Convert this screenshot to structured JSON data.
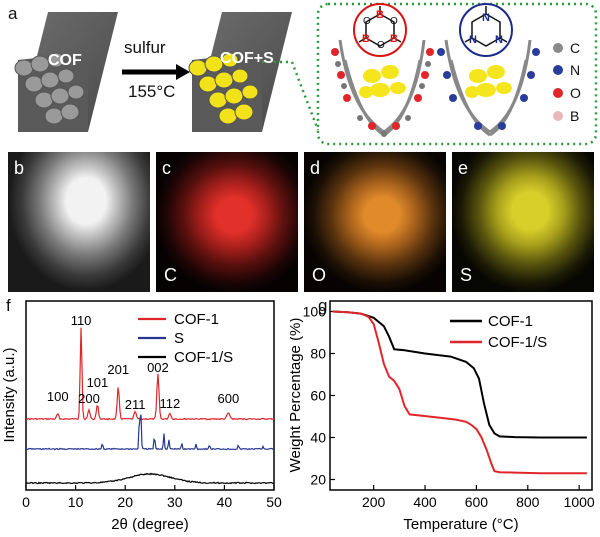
{
  "panel_a": {
    "letter": "a",
    "cof_label": "COF",
    "arrow_top": "sulfur",
    "arrow_bottom": "155°C",
    "cofs_label": "COF+S",
    "legend": [
      {
        "name": "C",
        "color": "#8a8a8a"
      },
      {
        "name": "N",
        "color": "#2b3d9a"
      },
      {
        "name": "O",
        "color": "#e0262b"
      },
      {
        "name": "B",
        "color": "#e8b8b8"
      }
    ],
    "ring_left_atoms": [
      "B",
      "O",
      "B",
      "O",
      "B",
      "O"
    ],
    "ring_right_atoms": [
      "N",
      "N",
      "N"
    ]
  },
  "maps": [
    {
      "letter": "b",
      "element": ""
    },
    {
      "letter": "c",
      "element": "C"
    },
    {
      "letter": "d",
      "element": "O"
    },
    {
      "letter": "e",
      "element": "S"
    }
  ],
  "chart_data": [
    {
      "panel": "f",
      "type": "line",
      "xlabel": "2θ (degree)",
      "ylabel": "Intensity (a.u.)",
      "xlim": [
        0,
        50
      ],
      "x_ticks": [
        "0",
        "10",
        "20",
        "30",
        "40",
        "50"
      ],
      "legend_position": "top-right",
      "series": [
        {
          "name": "COF-1",
          "color": "#e0262b"
        },
        {
          "name": "S",
          "color": "#27378f"
        },
        {
          "name": "COF-1/S",
          "color": "#000000"
        }
      ],
      "peaks": [
        {
          "label": "100",
          "x": 6.4
        },
        {
          "label": "110",
          "x": 11.1
        },
        {
          "label": "200",
          "x": 12.7
        },
        {
          "label": "101",
          "x": 14.4
        },
        {
          "label": "201",
          "x": 18.6
        },
        {
          "label": "211",
          "x": 22.0
        },
        {
          "label": "002",
          "x": 26.6
        },
        {
          "label": "112",
          "x": 29.0
        },
        {
          "label": "600",
          "x": 40.8
        }
      ]
    },
    {
      "panel": "g",
      "type": "line",
      "xlabel": "Temperature (°C)",
      "ylabel": "Weight Percentage (%)",
      "xlim": [
        30,
        1050
      ],
      "ylim": [
        15,
        105
      ],
      "x_ticks": [
        200,
        400,
        600,
        800,
        1000
      ],
      "y_ticks": [
        20,
        40,
        60,
        80,
        100
      ],
      "legend_position": "top-right",
      "series": [
        {
          "name": "COF-1",
          "color": "#000000",
          "x": [
            40,
            100,
            150,
            200,
            240,
            260,
            280,
            320,
            400,
            500,
            560,
            590,
            610,
            630,
            650,
            670,
            690,
            750,
            850,
            950,
            1030
          ],
          "y": [
            100,
            99.6,
            99,
            97,
            93,
            88,
            82,
            81.5,
            80,
            78.5,
            76,
            73,
            68,
            56,
            46,
            42,
            40.5,
            40.2,
            40,
            40,
            40
          ]
        },
        {
          "name": "COF-1/S",
          "color": "#e0262b",
          "x": [
            40,
            100,
            150,
            180,
            200,
            220,
            240,
            260,
            280,
            300,
            320,
            340,
            380,
            450,
            520,
            560,
            580,
            600,
            620,
            640,
            660,
            670,
            690,
            750,
            850,
            950,
            1030
          ],
          "y": [
            100,
            99.6,
            99,
            97.5,
            94,
            85,
            75,
            69,
            67,
            63,
            55,
            51,
            50.5,
            49.5,
            48.5,
            47.5,
            46,
            44,
            40,
            34,
            27,
            24,
            23.5,
            23.3,
            23,
            23,
            23
          ]
        }
      ]
    }
  ]
}
